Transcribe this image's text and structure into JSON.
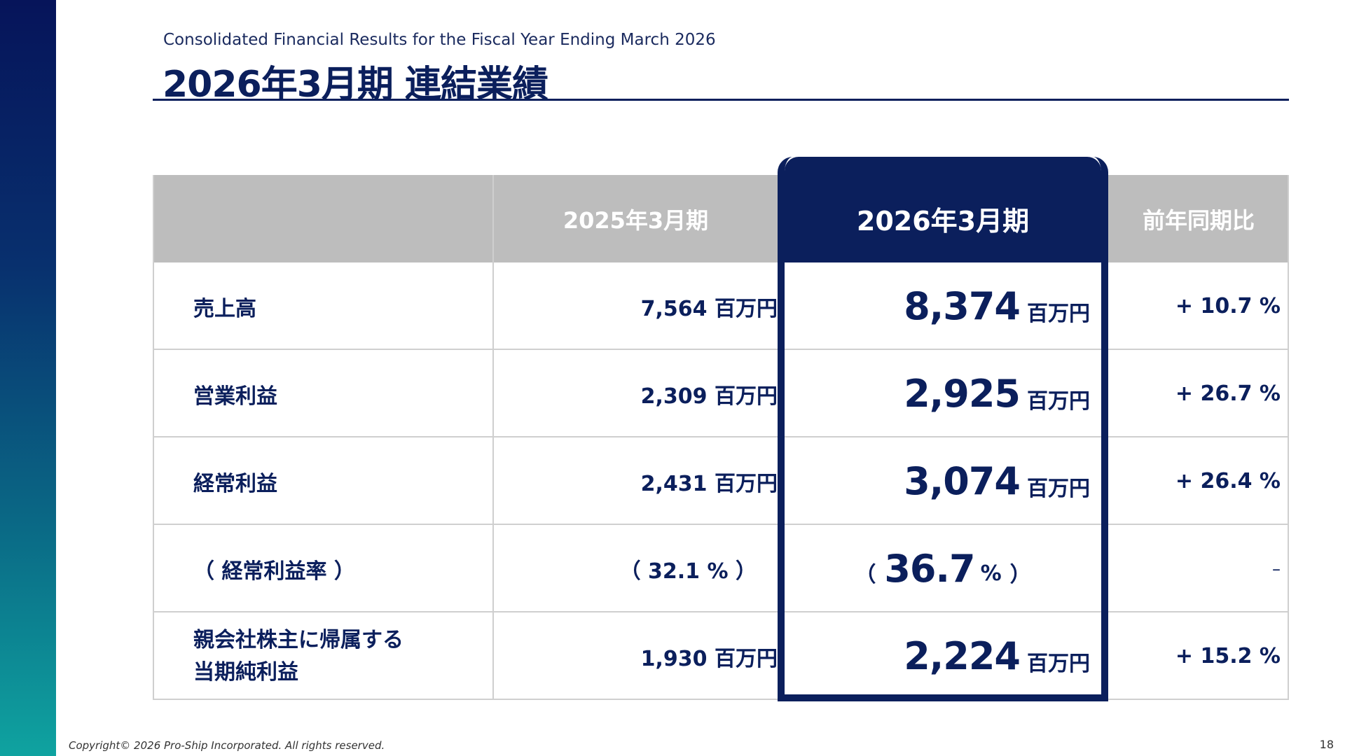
{
  "header": {
    "subtitle": "Consolidated Financial Results for the Fiscal Year Ending March 2026",
    "title": "2026年3月期 連結業績"
  },
  "table": {
    "columns": {
      "prev": "2025年3月期",
      "current": "2026年3月期",
      "yoy": "前年同期比"
    },
    "rows": [
      {
        "label": "売上高",
        "prev": "7,564 百万円",
        "current_value": "8,374",
        "current_unit": "百万円",
        "yoy": "+ 10.7 %"
      },
      {
        "label": "営業利益",
        "prev": "2,309 百万円",
        "current_value": "2,925",
        "current_unit": "百万円",
        "yoy": "+ 26.7 %"
      },
      {
        "label": "経常利益",
        "prev": "2,431 百万円",
        "current_value": "3,074",
        "current_unit": "百万円",
        "yoy": "+ 26.4 %"
      },
      {
        "label": "（ 経常利益率 ）",
        "prev": "（ 32.1 % ）",
        "current_open": "（",
        "current_value": "36.7",
        "current_unit": "%",
        "current_close": "）",
        "yoy": "–"
      },
      {
        "label_line1": "親会社株主に帰属する",
        "label_line2": "当期純利益",
        "prev": "1,930 百万円",
        "current_value": "2,224",
        "current_unit": "百万円",
        "yoy": "+ 15.2 %"
      }
    ]
  },
  "footer": {
    "copyright": "Copyright© 2026 Pro-Ship Incorporated. All rights reserved.",
    "page_number": "18"
  },
  "colors": {
    "navy": "#0b1f5c",
    "header_gray": "#bdbdbd",
    "gradient_top": "#06145a",
    "gradient_bottom": "#0fa3a0"
  }
}
